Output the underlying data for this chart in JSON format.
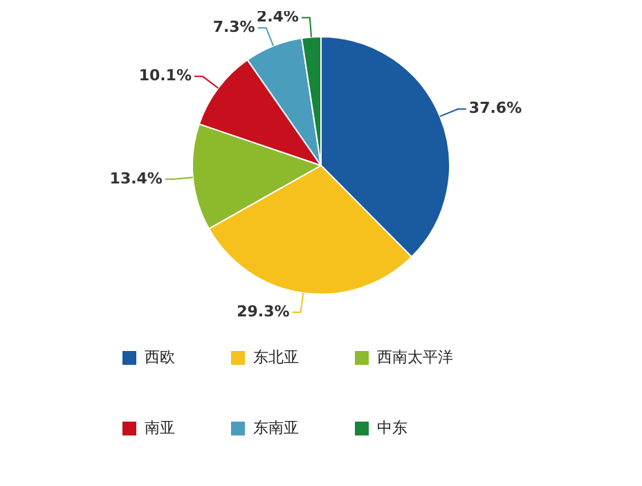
{
  "chart_data": {
    "type": "pie",
    "categories": [
      "西欧",
      "东北亚",
      "西南太平洋",
      "南亚",
      "东南亚",
      "中东"
    ],
    "values": [
      37.6,
      29.3,
      13.4,
      10.1,
      7.3,
      2.4
    ],
    "colors": [
      "#1a5aa0",
      "#f6c11c",
      "#8cba2c",
      "#c80f1e",
      "#4b9dbd",
      "#17853a"
    ],
    "value_labels": [
      "37.6%",
      "29.3%",
      "13.4%",
      "10.1%",
      "7.3%",
      "2.4%"
    ],
    "legend": "bottom"
  }
}
